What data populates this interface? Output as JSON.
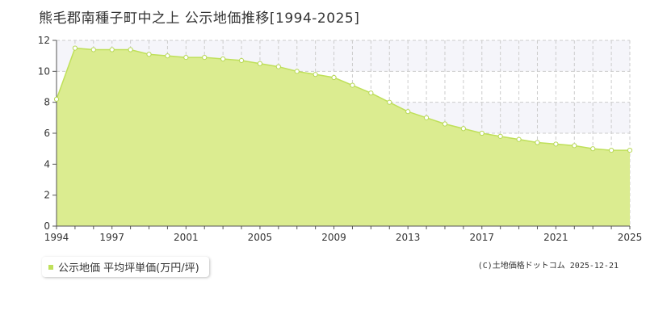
{
  "title": "熊毛郡南種子町中之上 公示地価推移[1994-2025]",
  "legend": {
    "label": "公示地価 平均坪単価(万円/坪)"
  },
  "credit": "(C)土地価格ドットコム 2025-12-21",
  "colors": {
    "fill": "#dbec90",
    "stroke": "#bfe05a",
    "marker_fill": "#ffffff",
    "marker_stroke": "#b7d855",
    "grid": "#cccccc",
    "band": "#f5f5fa",
    "axis": "#555555"
  },
  "chart_data": {
    "type": "area",
    "x": [
      1994,
      1995,
      1996,
      1997,
      1998,
      1999,
      2000,
      2001,
      2002,
      2003,
      2004,
      2005,
      2006,
      2007,
      2008,
      2009,
      2010,
      2011,
      2012,
      2013,
      2014,
      2015,
      2016,
      2017,
      2018,
      2019,
      2020,
      2021,
      2022,
      2023,
      2024,
      2025
    ],
    "series": [
      {
        "name": "公示地価 平均坪単価(万円/坪)",
        "values": [
          8.2,
          11.5,
          11.4,
          11.4,
          11.4,
          11.1,
          11.0,
          10.9,
          10.9,
          10.8,
          10.7,
          10.5,
          10.3,
          10.0,
          9.8,
          9.6,
          9.1,
          8.6,
          8.0,
          7.4,
          7.0,
          6.6,
          6.3,
          6.0,
          5.8,
          5.6,
          5.4,
          5.3,
          5.2,
          5.0,
          4.9,
          4.9
        ]
      }
    ],
    "xticks": [
      1994,
      1997,
      2001,
      2005,
      2009,
      2013,
      2017,
      2021,
      2025
    ],
    "yticks": [
      0,
      2,
      4,
      6,
      8,
      10,
      12
    ],
    "xlim": [
      1994,
      2025
    ],
    "ylim": [
      0,
      12
    ],
    "grid": true,
    "legend_position": "bottom-left"
  }
}
